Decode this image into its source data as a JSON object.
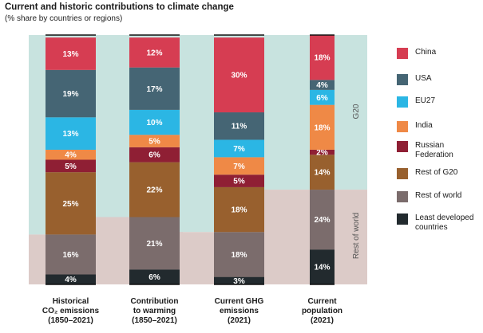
{
  "title": "Current and historic contributions to climate change",
  "subtitle": "(% share by countries or regions)",
  "bands": {
    "upper": "G20",
    "lower": "Rest of world"
  },
  "colors": {
    "China": "#d63d52",
    "USA": "#456574",
    "EU27": "#2bb6e4",
    "India": "#ef8946",
    "Russian Federation": "#8f1f34",
    "Rest of G20": "#98602e",
    "Rest of world": "#7b6c6c",
    "Least developed countries": "#222a2e",
    "g20_band": "#c8e3df",
    "row_band": "#dccbc8"
  },
  "legend": [
    {
      "key": "China",
      "label": "China"
    },
    {
      "key": "USA",
      "label": "USA"
    },
    {
      "key": "EU27",
      "label": "EU27"
    },
    {
      "key": "India",
      "label": "India"
    },
    {
      "key": "Russian Federation",
      "label": "Russian Federation"
    },
    {
      "key": "Rest of G20",
      "label": "Rest of G20"
    },
    {
      "key": "Rest of world",
      "label": "Rest of world"
    },
    {
      "key": "Least developed countries",
      "label": "Least developed countries"
    }
  ],
  "chart_data": {
    "type": "bar",
    "stacked": true,
    "unit": "%",
    "categories": [
      [
        "Historical",
        "CO₂ emissions",
        "(1850–2021)"
      ],
      [
        "Contribution",
        "to warming",
        "(1850–2021)"
      ],
      [
        "Current GHG",
        "emissions",
        "(2021)"
      ],
      [
        "Current",
        "population",
        "(2021)"
      ]
    ],
    "series": [
      {
        "name": "Least developed countries",
        "values": [
          4,
          6,
          3,
          14
        ]
      },
      {
        "name": "Rest of world",
        "values": [
          16,
          21,
          18,
          24
        ]
      },
      {
        "name": "Rest of G20",
        "values": [
          25,
          22,
          18,
          14
        ]
      },
      {
        "name": "Russian Federation",
        "values": [
          5,
          6,
          5,
          2
        ]
      },
      {
        "name": "India",
        "values": [
          4,
          5,
          7,
          18
        ]
      },
      {
        "name": "EU27",
        "values": [
          13,
          10,
          7,
          6
        ]
      },
      {
        "name": "USA",
        "values": [
          19,
          17,
          11,
          4
        ]
      },
      {
        "name": "China",
        "values": [
          13,
          12,
          30,
          18
        ]
      }
    ],
    "ylim": [
      0,
      100
    ]
  }
}
